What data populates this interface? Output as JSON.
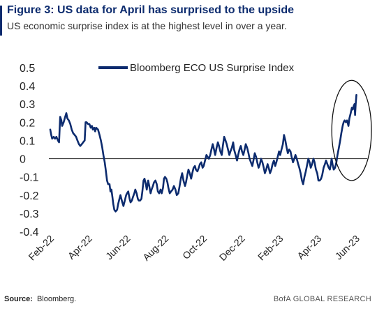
{
  "header": {
    "title": "Figure 3: US data for April has surprised to the upside",
    "subtitle": "US economic surprise index is at the highest level in over a year."
  },
  "footer": {
    "source_label": "Source:",
    "source_value": "Bloomberg.",
    "brand": "BofA GLOBAL RESEARCH"
  },
  "colors": {
    "line": "#0c2b6e",
    "title": "#0c2b6e",
    "zero_line": "#333333",
    "highlight_ellipse": "#111111"
  },
  "chart_data": {
    "type": "line",
    "title": "",
    "xlabel": "",
    "ylabel": "",
    "ylim": [
      -0.4,
      0.5
    ],
    "y_ticks": [
      "0.5",
      "0.4",
      "0.3",
      "0.2",
      "0.1",
      "0",
      "-0.1",
      "-0.2",
      "-0.3",
      "-0.4"
    ],
    "y_tick_values": [
      0.5,
      0.4,
      0.3,
      0.2,
      0.1,
      0,
      -0.1,
      -0.2,
      -0.3,
      -0.4
    ],
    "x_ticks": [
      "Feb-22",
      "Apr-22",
      "Jun-22",
      "Aug-22",
      "Oct-22",
      "Dec-22",
      "Feb-23",
      "Apr-23",
      "Jun-23"
    ],
    "x_tick_months": [
      0,
      2,
      4,
      6,
      8,
      10,
      12,
      14,
      16
    ],
    "x_unit": "months since Feb-22",
    "legend": {
      "position": "top-center",
      "entries": [
        "Bloomberg ECO US Surprise Index"
      ]
    },
    "grid": false,
    "zero_line": true,
    "annotation": "ellipse highlighting the Apr-23 to Jun-23 rise",
    "highlight_range": {
      "x": [
        14.95,
        16.0
      ],
      "y": [
        -0.12,
        0.43
      ]
    },
    "series": [
      {
        "name": "Bloomberg ECO US Surprise Index",
        "points": [
          [
            0.0,
            0.16
          ],
          [
            0.05,
            0.13
          ],
          [
            0.1,
            0.11
          ],
          [
            0.18,
            0.12
          ],
          [
            0.25,
            0.11
          ],
          [
            0.32,
            0.12
          ],
          [
            0.4,
            0.1
          ],
          [
            0.46,
            0.09
          ],
          [
            0.52,
            0.23
          ],
          [
            0.58,
            0.21
          ],
          [
            0.62,
            0.18
          ],
          [
            0.7,
            0.2
          ],
          [
            0.78,
            0.23
          ],
          [
            0.84,
            0.25
          ],
          [
            0.9,
            0.22
          ],
          [
            0.97,
            0.21
          ],
          [
            1.05,
            0.19
          ],
          [
            1.12,
            0.16
          ],
          [
            1.2,
            0.14
          ],
          [
            1.28,
            0.13
          ],
          [
            1.35,
            0.12
          ],
          [
            1.42,
            0.1
          ],
          [
            1.5,
            0.08
          ],
          [
            1.57,
            0.07
          ],
          [
            1.65,
            0.08
          ],
          [
            1.72,
            0.09
          ],
          [
            1.8,
            0.1
          ],
          [
            1.85,
            0.2
          ],
          [
            1.9,
            0.2
          ],
          [
            1.98,
            0.19
          ],
          [
            2.05,
            0.19
          ],
          [
            2.12,
            0.17
          ],
          [
            2.18,
            0.18
          ],
          [
            2.23,
            0.16
          ],
          [
            2.3,
            0.17
          ],
          [
            2.35,
            0.15
          ],
          [
            2.4,
            0.17
          ],
          [
            2.5,
            0.16
          ],
          [
            2.58,
            0.13
          ],
          [
            2.65,
            0.1
          ],
          [
            2.72,
            0.06
          ],
          [
            2.78,
            0.02
          ],
          [
            2.85,
            -0.02
          ],
          [
            2.9,
            -0.06
          ],
          [
            2.97,
            -0.12
          ],
          [
            3.03,
            -0.14
          ],
          [
            3.1,
            -0.14
          ],
          [
            3.15,
            -0.18
          ],
          [
            3.2,
            -0.17
          ],
          [
            3.25,
            -0.21
          ],
          [
            3.3,
            -0.25
          ],
          [
            3.35,
            -0.28
          ],
          [
            3.42,
            -0.29
          ],
          [
            3.5,
            -0.28
          ],
          [
            3.55,
            -0.25
          ],
          [
            3.62,
            -0.22
          ],
          [
            3.67,
            -0.2
          ],
          [
            3.72,
            -0.22
          ],
          [
            3.77,
            -0.24
          ],
          [
            3.83,
            -0.26
          ],
          [
            3.9,
            -0.23
          ],
          [
            3.97,
            -0.2
          ],
          [
            4.02,
            -0.19
          ],
          [
            4.08,
            -0.18
          ],
          [
            4.15,
            -0.22
          ],
          [
            4.2,
            -0.24
          ],
          [
            4.27,
            -0.23
          ],
          [
            4.33,
            -0.21
          ],
          [
            4.4,
            -0.19
          ],
          [
            4.45,
            -0.17
          ],
          [
            4.52,
            -0.19
          ],
          [
            4.58,
            -0.22
          ],
          [
            4.63,
            -0.23
          ],
          [
            4.7,
            -0.23
          ],
          [
            4.77,
            -0.22
          ],
          [
            4.82,
            -0.18
          ],
          [
            4.88,
            -0.12
          ],
          [
            4.93,
            -0.11
          ],
          [
            5.0,
            -0.14
          ],
          [
            5.05,
            -0.17
          ],
          [
            5.12,
            -0.12
          ],
          [
            5.18,
            -0.15
          ],
          [
            5.25,
            -0.19
          ],
          [
            5.3,
            -0.17
          ],
          [
            5.37,
            -0.15
          ],
          [
            5.43,
            -0.13
          ],
          [
            5.5,
            -0.12
          ],
          [
            5.57,
            -0.14
          ],
          [
            5.63,
            -0.18
          ],
          [
            5.7,
            -0.19
          ],
          [
            5.77,
            -0.17
          ],
          [
            5.83,
            -0.19
          ],
          [
            5.9,
            -0.16
          ],
          [
            5.95,
            -0.11
          ],
          [
            6.0,
            -0.1
          ],
          [
            6.07,
            -0.11
          ],
          [
            6.13,
            -0.13
          ],
          [
            6.18,
            -0.16
          ],
          [
            6.25,
            -0.19
          ],
          [
            6.32,
            -0.18
          ],
          [
            6.4,
            -0.17
          ],
          [
            6.47,
            -0.15
          ],
          [
            6.55,
            -0.17
          ],
          [
            6.62,
            -0.2
          ],
          [
            6.7,
            -0.19
          ],
          [
            6.77,
            -0.15
          ],
          [
            6.83,
            -0.11
          ],
          [
            6.9,
            -0.08
          ],
          [
            6.97,
            -0.12
          ],
          [
            7.05,
            -0.15
          ],
          [
            7.1,
            -0.13
          ],
          [
            7.17,
            -0.09
          ],
          [
            7.23,
            -0.06
          ],
          [
            7.3,
            -0.08
          ],
          [
            7.37,
            -0.11
          ],
          [
            7.43,
            -0.08
          ],
          [
            7.5,
            -0.05
          ],
          [
            7.57,
            -0.04
          ],
          [
            7.62,
            -0.06
          ],
          [
            7.7,
            -0.07
          ],
          [
            7.77,
            -0.05
          ],
          [
            7.83,
            -0.03
          ],
          [
            7.9,
            -0.02
          ],
          [
            7.97,
            -0.05
          ],
          [
            8.03,
            -0.04
          ],
          [
            8.1,
            -0.01
          ],
          [
            8.17,
            0.02
          ],
          [
            8.23,
            0.01
          ],
          [
            8.3,
            0.0
          ],
          [
            8.37,
            0.02
          ],
          [
            8.43,
            0.05
          ],
          [
            8.5,
            0.08
          ],
          [
            8.57,
            0.05
          ],
          [
            8.63,
            0.02
          ],
          [
            8.7,
            0.06
          ],
          [
            8.77,
            0.09
          ],
          [
            8.83,
            0.07
          ],
          [
            8.9,
            0.04
          ],
          [
            8.97,
            0.02
          ],
          [
            9.03,
            0.07
          ],
          [
            9.1,
            0.12
          ],
          [
            9.17,
            0.1
          ],
          [
            9.23,
            0.08
          ],
          [
            9.3,
            0.05
          ],
          [
            9.37,
            0.02
          ],
          [
            9.43,
            0.04
          ],
          [
            9.5,
            0.06
          ],
          [
            9.57,
            0.09
          ],
          [
            9.62,
            0.05
          ],
          [
            9.7,
            0.02
          ],
          [
            9.77,
            -0.01
          ],
          [
            9.83,
            0.02
          ],
          [
            9.9,
            0.05
          ],
          [
            9.97,
            0.07
          ],
          [
            10.03,
            0.04
          ],
          [
            10.1,
            0.02
          ],
          [
            10.17,
            0.05
          ],
          [
            10.23,
            0.08
          ],
          [
            10.3,
            0.06
          ],
          [
            10.37,
            0.03
          ],
          [
            10.43,
            0.0
          ],
          [
            10.5,
            -0.02
          ],
          [
            10.57,
            -0.04
          ],
          [
            10.63,
            -0.01
          ],
          [
            10.7,
            0.03
          ],
          [
            10.77,
            0.01
          ],
          [
            10.83,
            -0.02
          ],
          [
            10.9,
            -0.05
          ],
          [
            10.97,
            -0.03
          ],
          [
            11.03,
            0.0
          ],
          [
            11.1,
            -0.02
          ],
          [
            11.17,
            -0.05
          ],
          [
            11.23,
            -0.08
          ],
          [
            11.3,
            -0.06
          ],
          [
            11.37,
            -0.03
          ],
          [
            11.43,
            -0.05
          ],
          [
            11.5,
            -0.08
          ],
          [
            11.57,
            -0.06
          ],
          [
            11.63,
            -0.03
          ],
          [
            11.7,
            -0.01
          ],
          [
            11.77,
            -0.04
          ],
          [
            11.83,
            -0.02
          ],
          [
            11.9,
            0.01
          ],
          [
            11.97,
            0.04
          ],
          [
            12.03,
            0.02
          ],
          [
            12.1,
            0.05
          ],
          [
            12.17,
            0.08
          ],
          [
            12.23,
            0.13
          ],
          [
            12.3,
            0.1
          ],
          [
            12.37,
            0.06
          ],
          [
            12.43,
            0.03
          ],
          [
            12.5,
            0.05
          ],
          [
            12.57,
            0.04
          ],
          [
            12.63,
            0.01
          ],
          [
            12.7,
            -0.02
          ],
          [
            12.77,
            0.0
          ],
          [
            12.83,
            0.02
          ],
          [
            12.9,
            0.0
          ],
          [
            12.97,
            -0.03
          ],
          [
            13.03,
            -0.05
          ],
          [
            13.1,
            -0.08
          ],
          [
            13.17,
            -0.12
          ],
          [
            13.23,
            -0.14
          ],
          [
            13.3,
            -0.1
          ],
          [
            13.37,
            -0.07
          ],
          [
            13.43,
            -0.04
          ],
          [
            13.5,
            0.0
          ],
          [
            13.57,
            -0.02
          ],
          [
            13.63,
            -0.05
          ],
          [
            13.7,
            -0.03
          ],
          [
            13.77,
            0.0
          ],
          [
            13.83,
            -0.02
          ],
          [
            13.9,
            -0.06
          ],
          [
            13.97,
            -0.08
          ],
          [
            14.03,
            -0.12
          ],
          [
            14.1,
            -0.12
          ],
          [
            14.17,
            -0.11
          ],
          [
            14.23,
            -0.09
          ],
          [
            14.3,
            -0.05
          ],
          [
            14.37,
            -0.03
          ],
          [
            14.43,
            -0.01
          ],
          [
            14.5,
            -0.03
          ],
          [
            14.57,
            -0.05
          ],
          [
            14.63,
            -0.06
          ],
          [
            14.68,
            -0.03
          ],
          [
            14.72,
            0.0
          ],
          [
            14.77,
            -0.03
          ],
          [
            14.83,
            -0.06
          ],
          [
            14.9,
            -0.05
          ],
          [
            14.97,
            -0.02
          ],
          [
            15.03,
            0.02
          ],
          [
            15.1,
            0.06
          ],
          [
            15.17,
            0.1
          ],
          [
            15.23,
            0.14
          ],
          [
            15.3,
            0.18
          ],
          [
            15.35,
            0.2
          ],
          [
            15.4,
            0.21
          ],
          [
            15.47,
            0.2
          ],
          [
            15.53,
            0.21
          ],
          [
            15.6,
            0.18
          ],
          [
            15.65,
            0.22
          ],
          [
            15.72,
            0.25
          ],
          [
            15.78,
            0.28
          ],
          [
            15.83,
            0.27
          ],
          [
            15.88,
            0.29
          ],
          [
            15.92,
            0.3
          ],
          [
            15.95,
            0.24
          ],
          [
            15.98,
            0.3
          ],
          [
            16.02,
            0.35
          ]
        ]
      }
    ]
  }
}
